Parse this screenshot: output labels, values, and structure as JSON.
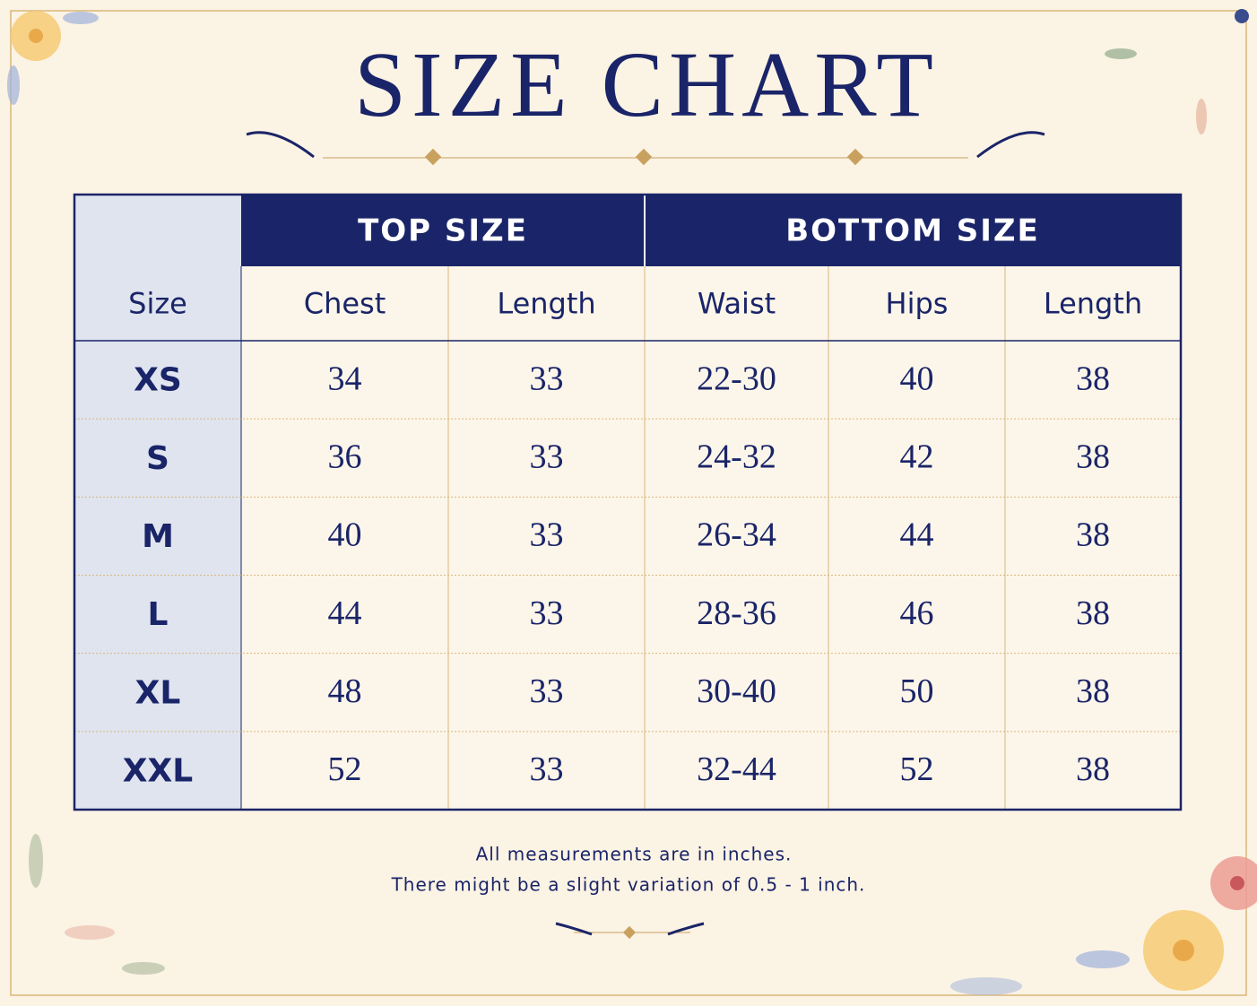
{
  "title": "SIZE CHART",
  "table": {
    "group_headers": [
      "TOP SIZE",
      "BOTTOM SIZE"
    ],
    "columns": [
      "Size",
      "Chest",
      "Length",
      "Waist",
      "Hips",
      "Length"
    ],
    "rows": [
      [
        "XS",
        34,
        33,
        "22-30",
        40,
        38
      ],
      [
        "S",
        36,
        33,
        "24-32",
        42,
        38
      ],
      [
        "M",
        40,
        33,
        "26-34",
        44,
        38
      ],
      [
        "L",
        44,
        33,
        "28-36",
        46,
        38
      ],
      [
        "XL",
        48,
        33,
        "30-40",
        50,
        38
      ],
      [
        "XXL",
        52,
        33,
        "32-44",
        52,
        38
      ]
    ]
  },
  "notes": [
    "All measurements are in inches.",
    "There might be a slight variation of 0.5 - 1 inch."
  ]
}
